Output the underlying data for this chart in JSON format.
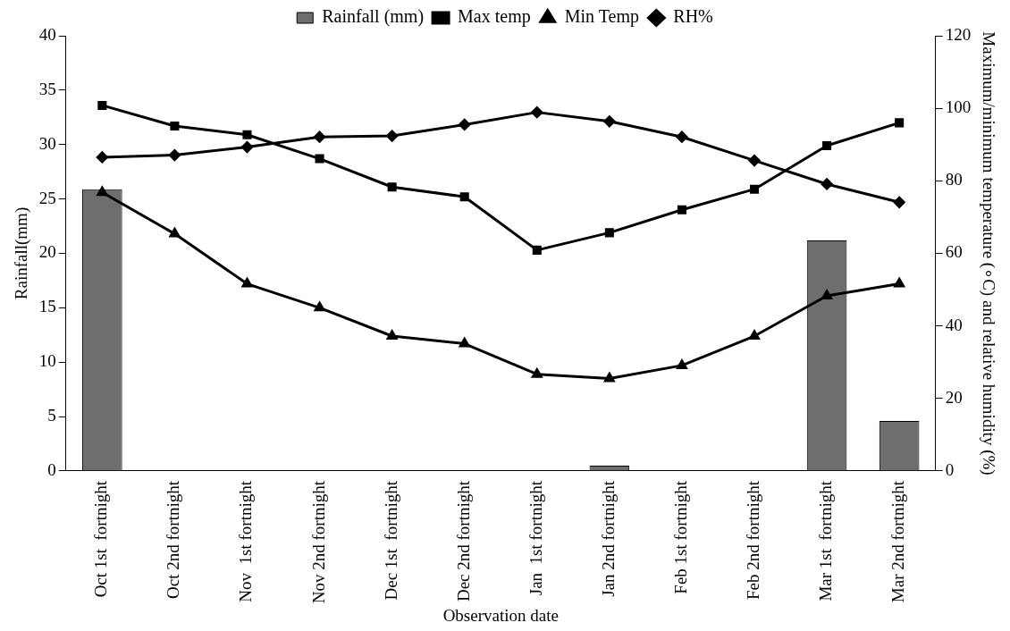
{
  "chart_data": {
    "type": "bar",
    "xlabel": "Observation date",
    "ylabel": "Rainfall(mm)",
    "y2label": "Maximum/minimum temperature (∘C) and relative humidity (%)",
    "categories": [
      "Oct 1st  fortnight",
      "Oct 2nd fortnight",
      "Nov  1st fortnight",
      "Nov 2nd fortnight",
      "Dec 1st  fortnight",
      "Dec 2nd fortnight",
      "Jan  1st fortnight",
      "Jan 2nd fortnight",
      "Feb 1st fortnight",
      "Feb 2nd fortnight",
      "Mar 1st  fortnight",
      "Mar 2nd fortnight"
    ],
    "series": [
      {
        "name": "Rainfall (mm)",
        "color": "#6e6e6e",
        "values": [
          25.9,
          0,
          0,
          0,
          0,
          0,
          0,
          0.5,
          0,
          0,
          21.2,
          4.6
        ]
      },
      {
        "name": "Max temp",
        "type": "line",
        "marker": "square",
        "color": "#000000",
        "values": [
          33.6,
          31.7,
          30.9,
          28.7,
          26.1,
          25.2,
          20.3,
          21.9,
          24.0,
          25.9,
          29.9,
          32.0
        ]
      },
      {
        "name": "Min Temp",
        "type": "line",
        "marker": "triangle",
        "color": "#000000",
        "values": [
          25.6,
          21.8,
          17.2,
          15.0,
          12.4,
          11.7,
          8.9,
          8.5,
          9.7,
          12.4,
          16.1,
          17.2
        ]
      },
      {
        "name": "RH%",
        "type": "line",
        "marker": "diamond",
        "axis": "y2",
        "color": "#000000",
        "values": [
          86.5,
          87.1,
          89.3,
          92.1,
          92.4,
          95.5,
          98.9,
          96.4,
          92.1,
          85.6,
          79.1,
          74.1
        ]
      }
    ],
    "ylim": [
      0,
      40
    ],
    "yticks": [
      0,
      5,
      10,
      15,
      20,
      25,
      30,
      35,
      40
    ],
    "y2lim": [
      0,
      120
    ],
    "y2ticks": [
      0,
      20,
      40,
      60,
      80,
      100,
      120
    ],
    "grid": false,
    "legend": "top"
  }
}
